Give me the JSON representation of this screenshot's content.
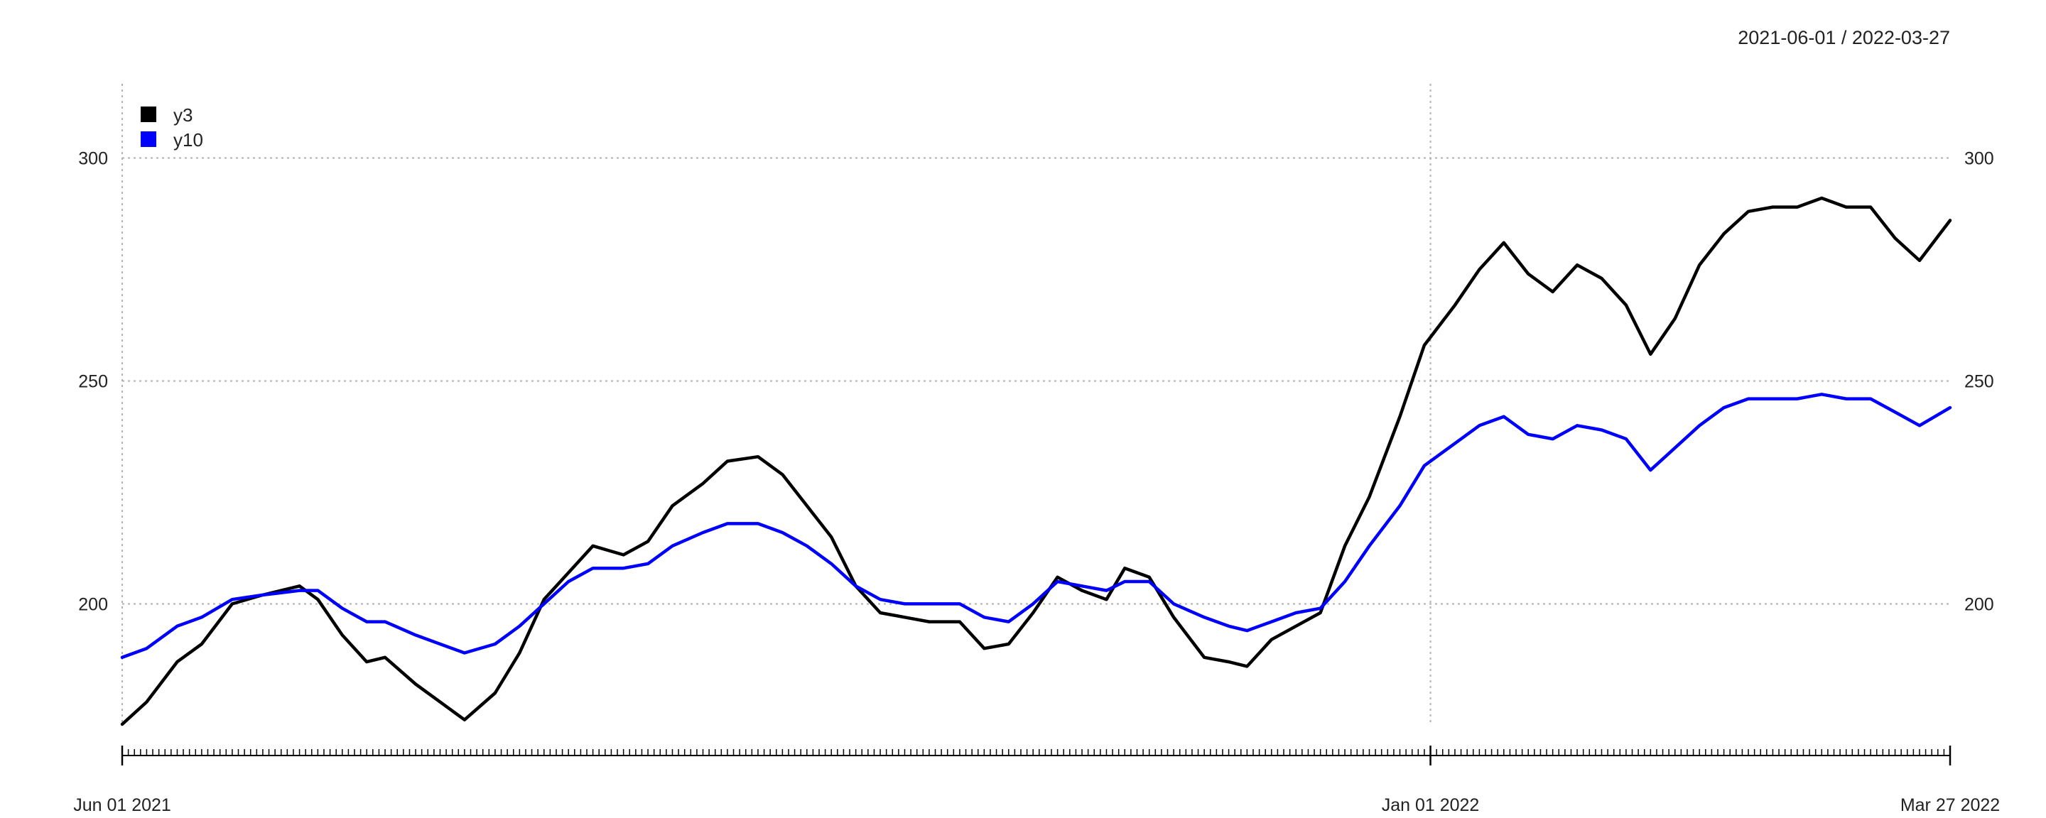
{
  "chart_data": {
    "type": "line",
    "title": "",
    "date_range_label": "2021-06-01 / 2022-03-27",
    "x_start": "2021-06-01",
    "x_end": "2022-03-27",
    "ylim": [
      173,
      316
    ],
    "y_ticks": [
      {
        "value": 200,
        "label": "200"
      },
      {
        "value": 250,
        "label": "250"
      },
      {
        "value": 300,
        "label": "300"
      }
    ],
    "x_tick_labels": [
      {
        "date": "2021-06-01",
        "label": "Jun 01 2021"
      },
      {
        "date": "2022-01-01",
        "label": "Jan 01 2022"
      },
      {
        "date": "2022-03-27",
        "label": "Mar 27 2022"
      }
    ],
    "vertical_gridlines": [
      "2022-01-01"
    ],
    "grid": true,
    "legend_position": "top-left",
    "series": [
      {
        "name": "y3",
        "color": "#000000",
        "points": [
          [
            "2021-06-01",
            173
          ],
          [
            "2021-06-05",
            178
          ],
          [
            "2021-06-10",
            187
          ],
          [
            "2021-06-14",
            191
          ],
          [
            "2021-06-19",
            200
          ],
          [
            "2021-06-24",
            202
          ],
          [
            "2021-06-30",
            204
          ],
          [
            "2021-07-03",
            201
          ],
          [
            "2021-07-07",
            193
          ],
          [
            "2021-07-11",
            187
          ],
          [
            "2021-07-14",
            188
          ],
          [
            "2021-07-19",
            182
          ],
          [
            "2021-07-23",
            178
          ],
          [
            "2021-07-27",
            174
          ],
          [
            "2021-08-01",
            180
          ],
          [
            "2021-08-05",
            189
          ],
          [
            "2021-08-09",
            201
          ],
          [
            "2021-08-13",
            207
          ],
          [
            "2021-08-17",
            213
          ],
          [
            "2021-08-22",
            211
          ],
          [
            "2021-08-26",
            214
          ],
          [
            "2021-08-30",
            222
          ],
          [
            "2021-09-04",
            227
          ],
          [
            "2021-09-08",
            232
          ],
          [
            "2021-09-13",
            233
          ],
          [
            "2021-09-17",
            229
          ],
          [
            "2021-09-21",
            222
          ],
          [
            "2021-09-25",
            215
          ],
          [
            "2021-09-29",
            204
          ],
          [
            "2021-10-03",
            198
          ],
          [
            "2021-10-07",
            197
          ],
          [
            "2021-10-11",
            196
          ],
          [
            "2021-10-16",
            196
          ],
          [
            "2021-10-20",
            190
          ],
          [
            "2021-10-24",
            191
          ],
          [
            "2021-10-28",
            198
          ],
          [
            "2021-11-01",
            206
          ],
          [
            "2021-11-05",
            203
          ],
          [
            "2021-11-09",
            201
          ],
          [
            "2021-11-12",
            208
          ],
          [
            "2021-11-16",
            206
          ],
          [
            "2021-11-20",
            197
          ],
          [
            "2021-11-25",
            188
          ],
          [
            "2021-11-29",
            187
          ],
          [
            "2021-12-02",
            186
          ],
          [
            "2021-12-06",
            192
          ],
          [
            "2021-12-10",
            195
          ],
          [
            "2021-12-14",
            198
          ],
          [
            "2021-12-18",
            213
          ],
          [
            "2021-12-22",
            224
          ],
          [
            "2021-12-27",
            242
          ],
          [
            "2021-12-31",
            258
          ],
          [
            "2022-01-05",
            267
          ],
          [
            "2022-01-09",
            275
          ],
          [
            "2022-01-13",
            281
          ],
          [
            "2022-01-17",
            274
          ],
          [
            "2022-01-21",
            270
          ],
          [
            "2022-01-25",
            276
          ],
          [
            "2022-01-29",
            273
          ],
          [
            "2022-02-02",
            267
          ],
          [
            "2022-02-06",
            256
          ],
          [
            "2022-02-10",
            264
          ],
          [
            "2022-02-14",
            276
          ],
          [
            "2022-02-18",
            283
          ],
          [
            "2022-02-22",
            288
          ],
          [
            "2022-02-26",
            289
          ],
          [
            "2022-03-02",
            289
          ],
          [
            "2022-03-06",
            291
          ],
          [
            "2022-03-10",
            289
          ],
          [
            "2022-03-14",
            289
          ],
          [
            "2022-03-18",
            282
          ],
          [
            "2022-03-22",
            277
          ],
          [
            "2022-03-27",
            286
          ]
        ]
      },
      {
        "name": "y10",
        "color": "#0000ff",
        "points": [
          [
            "2021-06-01",
            188
          ],
          [
            "2021-06-05",
            190
          ],
          [
            "2021-06-10",
            195
          ],
          [
            "2021-06-14",
            197
          ],
          [
            "2021-06-19",
            201
          ],
          [
            "2021-06-24",
            202
          ],
          [
            "2021-06-30",
            203
          ],
          [
            "2021-07-03",
            203
          ],
          [
            "2021-07-07",
            199
          ],
          [
            "2021-07-11",
            196
          ],
          [
            "2021-07-14",
            196
          ],
          [
            "2021-07-19",
            193
          ],
          [
            "2021-07-23",
            191
          ],
          [
            "2021-07-27",
            189
          ],
          [
            "2021-08-01",
            191
          ],
          [
            "2021-08-05",
            195
          ],
          [
            "2021-08-09",
            200
          ],
          [
            "2021-08-13",
            205
          ],
          [
            "2021-08-17",
            208
          ],
          [
            "2021-08-22",
            208
          ],
          [
            "2021-08-26",
            209
          ],
          [
            "2021-08-30",
            213
          ],
          [
            "2021-09-04",
            216
          ],
          [
            "2021-09-08",
            218
          ],
          [
            "2021-09-13",
            218
          ],
          [
            "2021-09-17",
            216
          ],
          [
            "2021-09-21",
            213
          ],
          [
            "2021-09-25",
            209
          ],
          [
            "2021-09-29",
            204
          ],
          [
            "2021-10-03",
            201
          ],
          [
            "2021-10-07",
            200
          ],
          [
            "2021-10-11",
            200
          ],
          [
            "2021-10-16",
            200
          ],
          [
            "2021-10-20",
            197
          ],
          [
            "2021-10-24",
            196
          ],
          [
            "2021-10-28",
            200
          ],
          [
            "2021-11-01",
            205
          ],
          [
            "2021-11-05",
            204
          ],
          [
            "2021-11-09",
            203
          ],
          [
            "2021-11-12",
            205
          ],
          [
            "2021-11-16",
            205
          ],
          [
            "2021-11-20",
            200
          ],
          [
            "2021-11-25",
            197
          ],
          [
            "2021-11-29",
            195
          ],
          [
            "2021-12-02",
            194
          ],
          [
            "2021-12-06",
            196
          ],
          [
            "2021-12-10",
            198
          ],
          [
            "2021-12-14",
            199
          ],
          [
            "2021-12-18",
            205
          ],
          [
            "2021-12-22",
            213
          ],
          [
            "2021-12-27",
            222
          ],
          [
            "2021-12-31",
            231
          ],
          [
            "2022-01-05",
            236
          ],
          [
            "2022-01-09",
            240
          ],
          [
            "2022-01-13",
            242
          ],
          [
            "2022-01-17",
            238
          ],
          [
            "2022-01-21",
            237
          ],
          [
            "2022-01-25",
            240
          ],
          [
            "2022-01-29",
            239
          ],
          [
            "2022-02-02",
            237
          ],
          [
            "2022-02-06",
            230
          ],
          [
            "2022-02-10",
            235
          ],
          [
            "2022-02-14",
            240
          ],
          [
            "2022-02-18",
            244
          ],
          [
            "2022-02-22",
            246
          ],
          [
            "2022-02-26",
            246
          ],
          [
            "2022-03-02",
            246
          ],
          [
            "2022-03-06",
            247
          ],
          [
            "2022-03-10",
            246
          ],
          [
            "2022-03-14",
            246
          ],
          [
            "2022-03-18",
            243
          ],
          [
            "2022-03-22",
            240
          ],
          [
            "2022-03-27",
            244
          ]
        ]
      }
    ]
  }
}
